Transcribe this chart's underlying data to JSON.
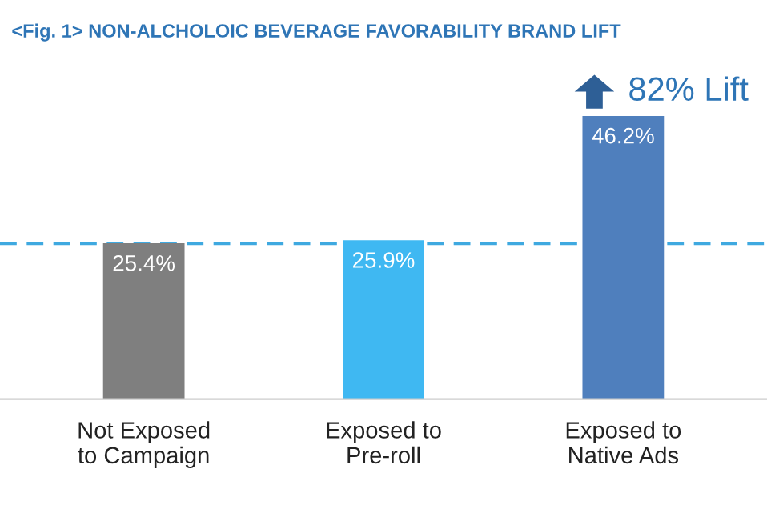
{
  "chart_data": {
    "type": "bar",
    "title": "<Fig. 1> NON-ALCHOLOIC BEVERAGE FAVORABILITY BRAND LIFT",
    "categories": [
      "Not Exposed\nto Campaign",
      "Exposed to\nPre-roll",
      "Exposed to\nNative Ads"
    ],
    "values": [
      25.4,
      25.9,
      46.2
    ],
    "colors": [
      "#7f7f7f",
      "#3fb8f2",
      "#4f7fbd"
    ],
    "value_labels": [
      "25.4%",
      "25.9%",
      "46.2%"
    ],
    "ref_lines": [
      {
        "axis": "y",
        "value": 25.4,
        "color": "#3fa9e0",
        "line_style": "dashed"
      }
    ],
    "annotations": [
      "82% Lift"
    ],
    "grid": false,
    "legend": false
  }
}
